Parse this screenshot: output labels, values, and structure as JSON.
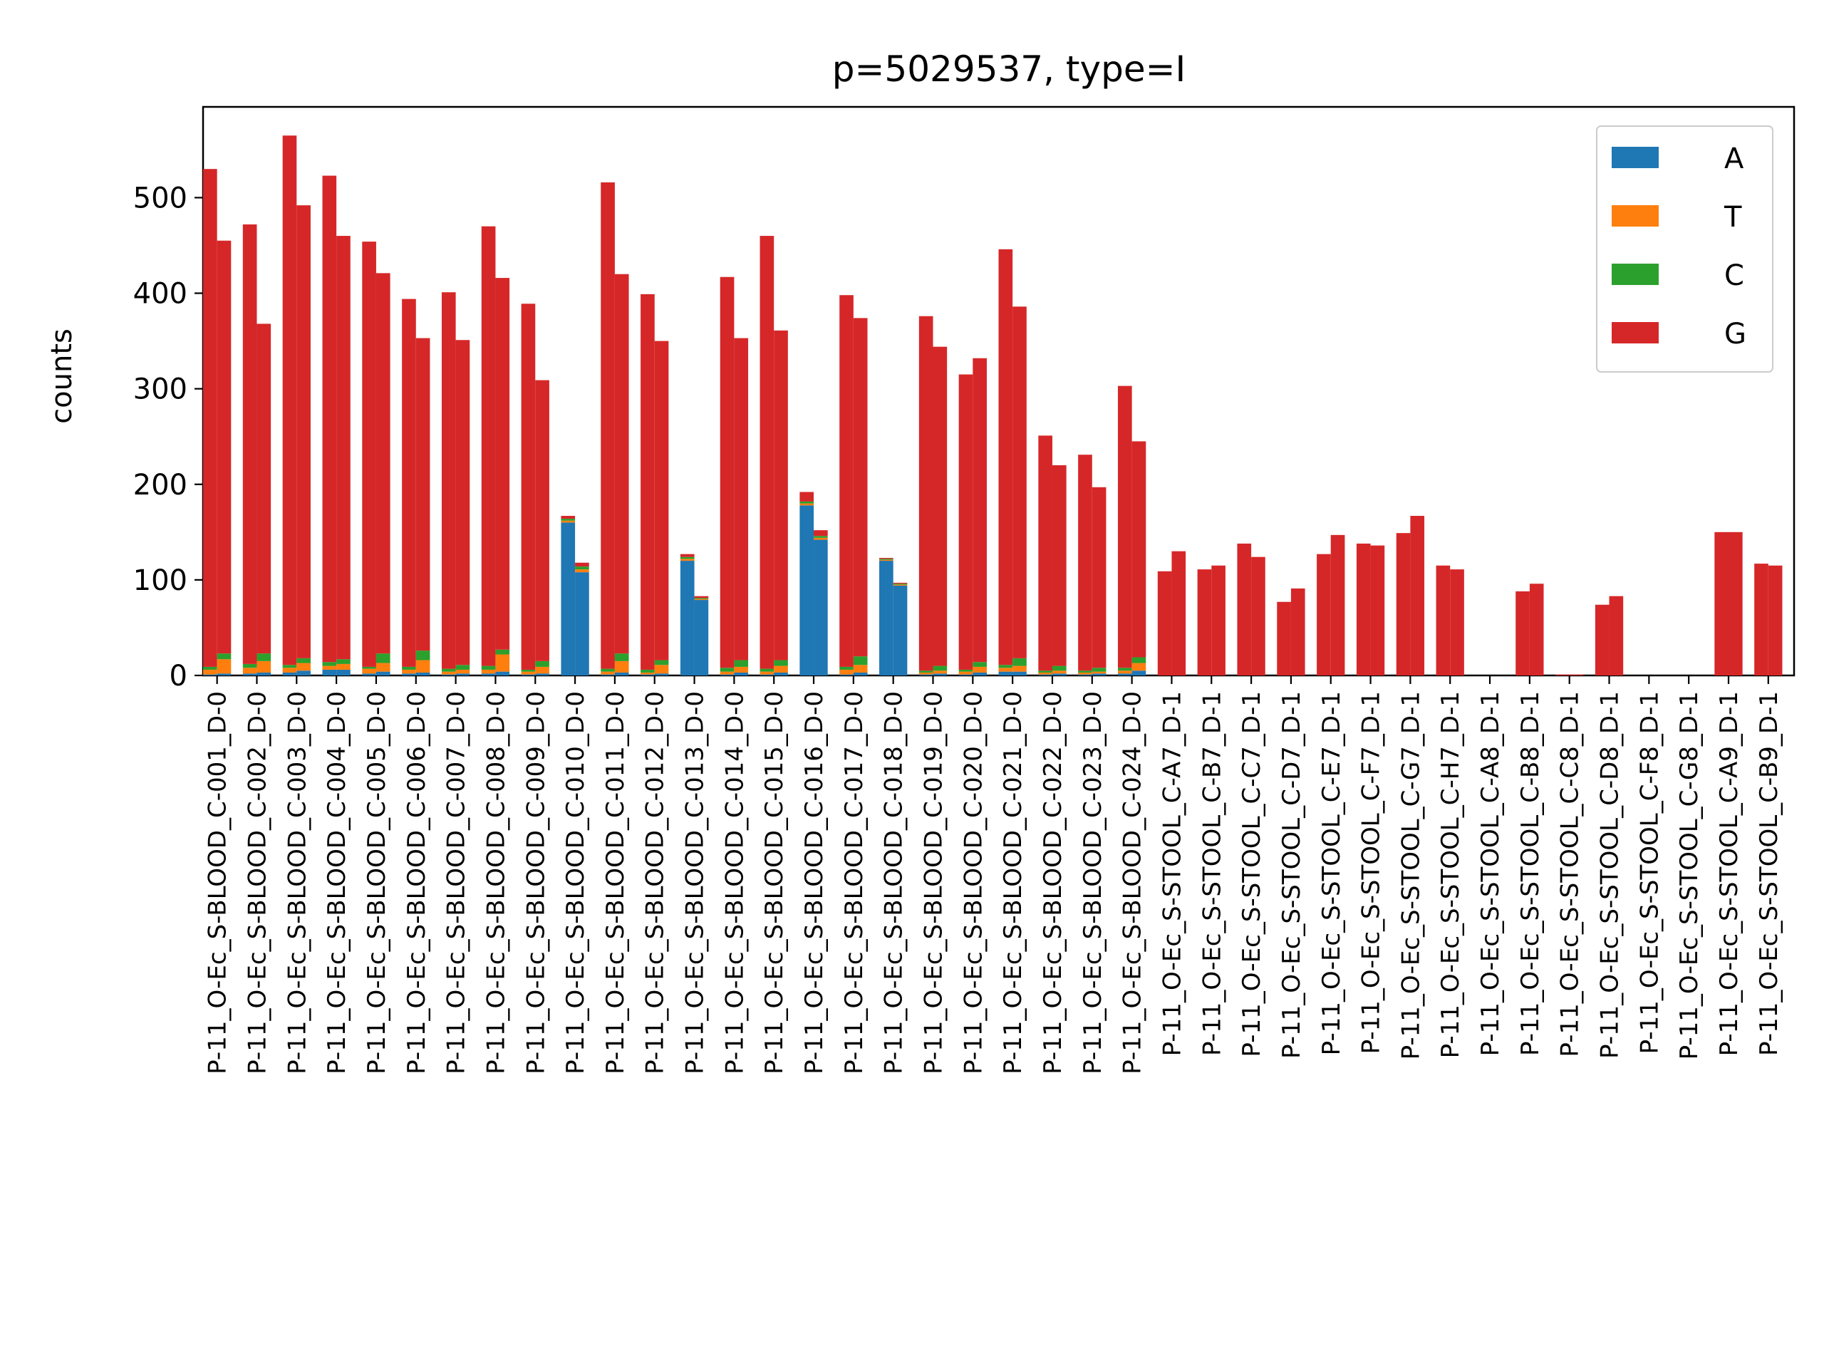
{
  "chart_data": {
    "type": "bar",
    "stacked": true,
    "grouped": true,
    "title": "p=5029537, type=I",
    "ylabel": "counts",
    "ylim": [
      0,
      595
    ],
    "yticks": [
      0,
      100,
      200,
      300,
      400,
      500
    ],
    "legend_position": "upper-right",
    "grid": false,
    "categories": [
      "P-11_O-Ec_S-BLOOD_C-001_D-0",
      "P-11_O-Ec_S-BLOOD_C-002_D-0",
      "P-11_O-Ec_S-BLOOD_C-003_D-0",
      "P-11_O-Ec_S-BLOOD_C-004_D-0",
      "P-11_O-Ec_S-BLOOD_C-005_D-0",
      "P-11_O-Ec_S-BLOOD_C-006_D-0",
      "P-11_O-Ec_S-BLOOD_C-007_D-0",
      "P-11_O-Ec_S-BLOOD_C-008_D-0",
      "P-11_O-Ec_S-BLOOD_C-009_D-0",
      "P-11_O-Ec_S-BLOOD_C-010_D-0",
      "P-11_O-Ec_S-BLOOD_C-011_D-0",
      "P-11_O-Ec_S-BLOOD_C-012_D-0",
      "P-11_O-Ec_S-BLOOD_C-013_D-0",
      "P-11_O-Ec_S-BLOOD_C-014_D-0",
      "P-11_O-Ec_S-BLOOD_C-015_D-0",
      "P-11_O-Ec_S-BLOOD_C-016_D-0",
      "P-11_O-Ec_S-BLOOD_C-017_D-0",
      "P-11_O-Ec_S-BLOOD_C-018_D-0",
      "P-11_O-Ec_S-BLOOD_C-019_D-0",
      "P-11_O-Ec_S-BLOOD_C-020_D-0",
      "P-11_O-Ec_S-BLOOD_C-021_D-0",
      "P-11_O-Ec_S-BLOOD_C-022_D-0",
      "P-11_O-Ec_S-BLOOD_C-023_D-0",
      "P-11_O-Ec_S-BLOOD_C-024_D-0",
      "P-11_O-Ec_S-STOOL_C-A7_D-1",
      "P-11_O-Ec_S-STOOL_C-B7_D-1",
      "P-11_O-Ec_S-STOOL_C-C7_D-1",
      "P-11_O-Ec_S-STOOL_C-D7_D-1",
      "P-11_O-Ec_S-STOOL_C-E7_D-1",
      "P-11_O-Ec_S-STOOL_C-F7_D-1",
      "P-11_O-Ec_S-STOOL_C-G7_D-1",
      "P-11_O-Ec_S-STOOL_C-H7_D-1",
      "P-11_O-Ec_S-STOOL_C-A8_D-1",
      "P-11_O-Ec_S-STOOL_C-B8_D-1",
      "P-11_O-Ec_S-STOOL_C-C8_D-1",
      "P-11_O-Ec_S-STOOL_C-D8_D-1",
      "P-11_O-Ec_S-STOOL_C-F8_D-1",
      "P-11_O-Ec_S-STOOL_C-G8_D-1",
      "P-11_O-Ec_S-STOOL_C-A9_D-1",
      "P-11_O-Ec_S-STOOL_C-B9_D-1"
    ],
    "series": [
      {
        "name": "A",
        "color": "#1f77b4"
      },
      {
        "name": "T",
        "color": "#ff7f0e"
      },
      {
        "name": "C",
        "color": "#2ca02c"
      },
      {
        "name": "G",
        "color": "#d62728"
      }
    ],
    "groups": [
      [
        [
          1,
          5,
          3,
          521
        ],
        [
          2,
          15,
          6,
          432
        ]
      ],
      [
        [
          2,
          6,
          4,
          460
        ],
        [
          3,
          12,
          8,
          345
        ]
      ],
      [
        [
          3,
          5,
          3,
          554
        ],
        [
          5,
          8,
          5,
          474
        ]
      ],
      [
        [
          6,
          4,
          4,
          509
        ],
        [
          6,
          6,
          5,
          443
        ]
      ],
      [
        [
          2,
          5,
          2,
          445
        ],
        [
          4,
          9,
          10,
          398
        ]
      ],
      [
        [
          2,
          4,
          3,
          385
        ],
        [
          3,
          13,
          10,
          327
        ]
      ],
      [
        [
          1,
          3,
          3,
          394
        ],
        [
          2,
          4,
          5,
          340
        ]
      ],
      [
        [
          2,
          4,
          4,
          460
        ],
        [
          4,
          18,
          5,
          389
        ]
      ],
      [
        [
          1,
          3,
          2,
          383
        ],
        [
          2,
          7,
          6,
          294
        ]
      ],
      [
        [
          160,
          2,
          2,
          3
        ],
        [
          108,
          3,
          3,
          4
        ]
      ],
      [
        [
          1,
          3,
          3,
          509
        ],
        [
          3,
          12,
          8,
          397
        ]
      ],
      [
        [
          1,
          2,
          3,
          393
        ],
        [
          2,
          9,
          5,
          334
        ]
      ],
      [
        [
          120,
          2,
          2,
          3
        ],
        [
          79,
          1,
          1,
          2
        ]
      ],
      [
        [
          1,
          3,
          4,
          409
        ],
        [
          3,
          6,
          7,
          337
        ]
      ],
      [
        [
          1,
          3,
          3,
          453
        ],
        [
          3,
          7,
          6,
          345
        ]
      ],
      [
        [
          178,
          2,
          2,
          10
        ],
        [
          142,
          2,
          2,
          6
        ]
      ],
      [
        [
          1,
          5,
          3,
          389
        ],
        [
          3,
          8,
          9,
          354
        ]
      ],
      [
        [
          120,
          1,
          1,
          1
        ],
        [
          94,
          1,
          1,
          1
        ]
      ],
      [
        [
          1,
          2,
          2,
          371
        ],
        [
          2,
          3,
          5,
          334
        ]
      ],
      [
        [
          1,
          3,
          2,
          309
        ],
        [
          3,
          6,
          5,
          318
        ]
      ],
      [
        [
          4,
          4,
          3,
          435
        ],
        [
          4,
          6,
          8,
          368
        ]
      ],
      [
        [
          1,
          2,
          2,
          246
        ],
        [
          2,
          3,
          5,
          210
        ]
      ],
      [
        [
          1,
          2,
          2,
          226
        ],
        [
          2,
          2,
          4,
          189
        ]
      ],
      [
        [
          2,
          3,
          3,
          295
        ],
        [
          5,
          8,
          6,
          226
        ]
      ],
      [
        [
          0,
          0,
          0,
          109
        ],
        [
          0,
          0,
          0,
          130
        ]
      ],
      [
        [
          0,
          0,
          0,
          111
        ],
        [
          0,
          0,
          0,
          115
        ]
      ],
      [
        [
          0,
          0,
          0,
          138
        ],
        [
          0,
          0,
          0,
          124
        ]
      ],
      [
        [
          0,
          0,
          0,
          77
        ],
        [
          0,
          0,
          0,
          91
        ]
      ],
      [
        [
          0,
          0,
          0,
          127
        ],
        [
          0,
          0,
          0,
          147
        ]
      ],
      [
        [
          0,
          0,
          0,
          138
        ],
        [
          0,
          0,
          0,
          136
        ]
      ],
      [
        [
          0,
          0,
          0,
          149
        ],
        [
          0,
          0,
          0,
          167
        ]
      ],
      [
        [
          0,
          0,
          0,
          115
        ],
        [
          0,
          0,
          0,
          111
        ]
      ],
      [
        [
          0,
          0,
          0,
          0
        ],
        [
          0,
          0,
          0,
          0
        ]
      ],
      [
        [
          0,
          0,
          0,
          88
        ],
        [
          0,
          0,
          0,
          96
        ]
      ],
      [
        [
          0,
          0,
          0,
          1
        ],
        [
          0,
          0,
          0,
          1
        ]
      ],
      [
        [
          0,
          0,
          0,
          74
        ],
        [
          0,
          0,
          0,
          83
        ]
      ],
      [
        [
          0,
          0,
          0,
          0
        ],
        [
          0,
          0,
          0,
          0
        ]
      ],
      [
        [
          0,
          0,
          0,
          0
        ],
        [
          0,
          0,
          0,
          0
        ]
      ],
      [
        [
          0,
          0,
          0,
          150
        ],
        [
          0,
          0,
          0,
          150
        ]
      ],
      [
        [
          0,
          0,
          0,
          117
        ],
        [
          0,
          0,
          0,
          115
        ]
      ]
    ]
  }
}
